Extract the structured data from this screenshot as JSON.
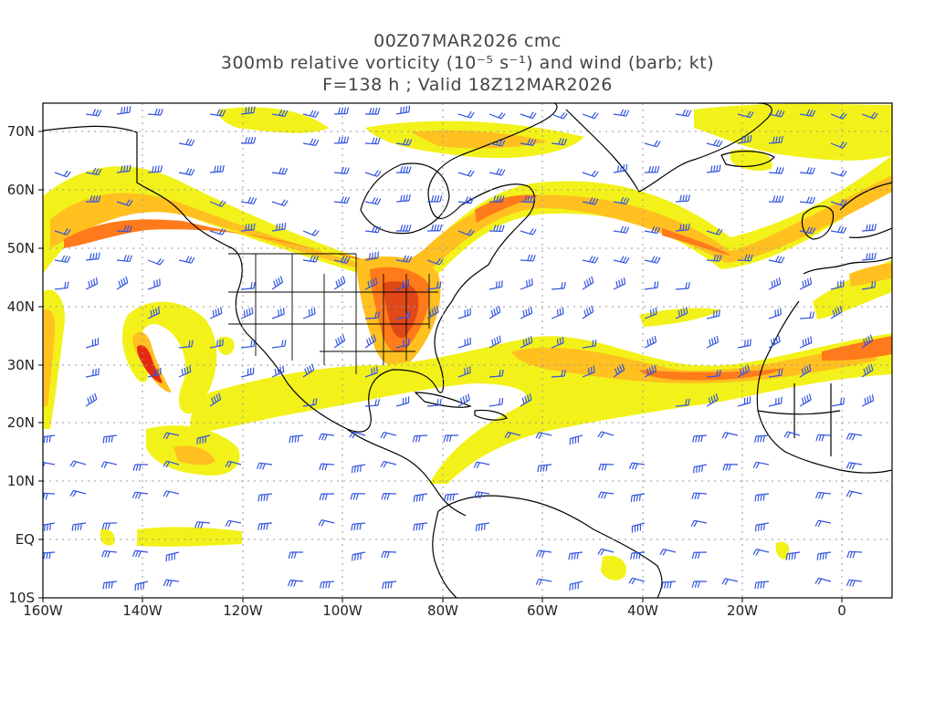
{
  "title": {
    "line1": "00Z07MAR2026 cmc",
    "line2": "300mb relative vorticity (10⁻⁵ s⁻¹) and wind (barb; kt)",
    "line3": "F=138 h ; Valid 18Z12MAR2026"
  },
  "map": {
    "projection": "cylindrical equidistant",
    "lon_range": [
      -160,
      10
    ],
    "lat_range": [
      -10,
      75
    ],
    "gridlines": "dotted",
    "colors": {
      "land_outline": "#000000",
      "wind_barbs": "#3355dd",
      "vorticity_low": "#f2f21a",
      "vorticity_mid": "#ffc020",
      "vorticity_high": "#ff7a1a",
      "vorticity_max": "#e62a10"
    },
    "lat_ticks": [
      "70N",
      "60N",
      "50N",
      "40N",
      "30N",
      "20N",
      "10N",
      "EQ",
      "10S"
    ],
    "lon_ticks": [
      "160W",
      "140W",
      "120W",
      "100W",
      "80W",
      "60W",
      "40W",
      "20W",
      "0"
    ]
  }
}
